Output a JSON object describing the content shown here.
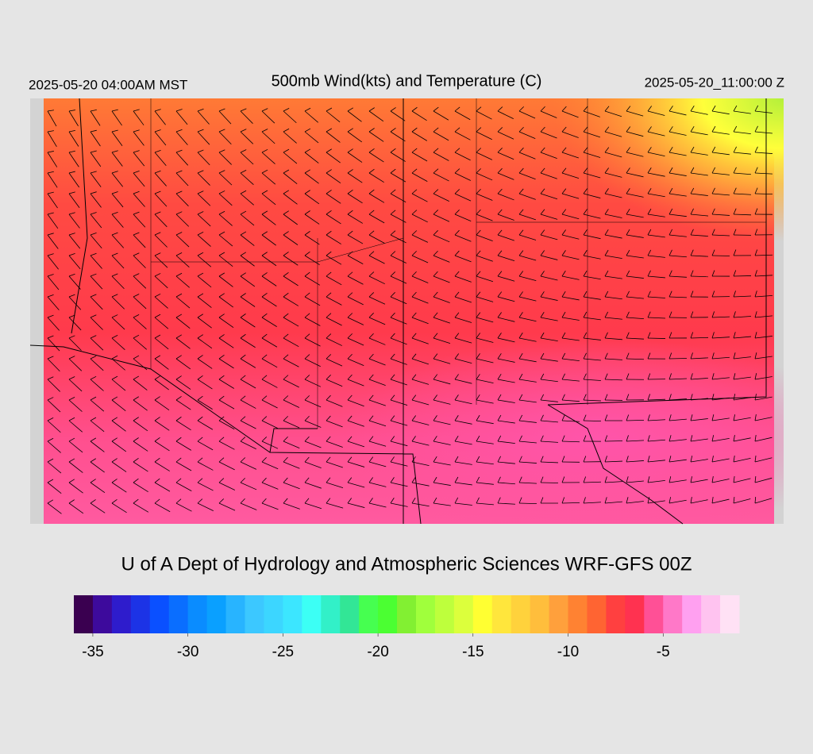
{
  "header": {
    "local_time": "2025-05-20 04:00AM MST",
    "title": "500mb Wind(kts) and Temperature (C)",
    "valid_time": "2025-05-20_11:00:00 Z"
  },
  "credit": "U of A Dept of Hydrology and Atmospheric Sciences WRF-GFS 00Z",
  "colorbar": {
    "lim": [
      -36,
      -1
    ],
    "ticks": [
      -35,
      -30,
      -25,
      -20,
      -15,
      -10,
      -5
    ],
    "colors": [
      "#3a0050",
      "#3d0a9c",
      "#2e1ccc",
      "#1c33e6",
      "#0a50ff",
      "#0a6eff",
      "#0a8cff",
      "#0aa0ff",
      "#28b4ff",
      "#3cc8ff",
      "#3cd6ff",
      "#3ce6ff",
      "#3cfff5",
      "#32f0c8",
      "#32e696",
      "#46ff50",
      "#4bff32",
      "#82f032",
      "#a0ff3c",
      "#beff3c",
      "#dcff3c",
      "#ffff32",
      "#ffe63c",
      "#ffd23c",
      "#ffbe3c",
      "#ffa03c",
      "#ff8232",
      "#ff6432",
      "#ff4040",
      "#ff3250",
      "#ff5096",
      "#ff78c8",
      "#ffa0f0",
      "#ffc3f0",
      "#ffe1f5"
    ]
  }
}
